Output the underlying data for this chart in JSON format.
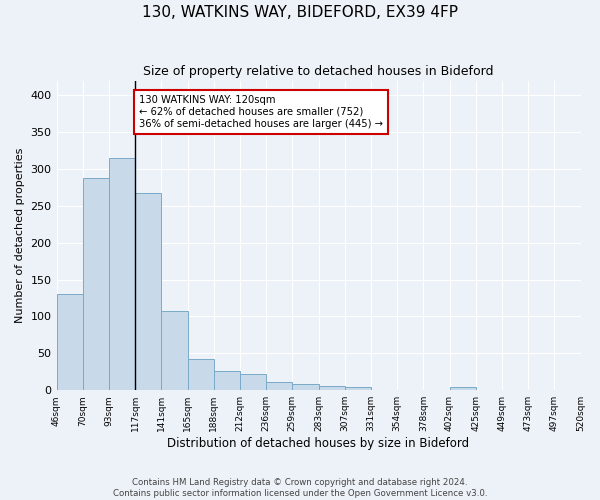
{
  "title1": "130, WATKINS WAY, BIDEFORD, EX39 4FP",
  "title2": "Size of property relative to detached houses in Bideford",
  "xlabel": "Distribution of detached houses by size in Bideford",
  "ylabel": "Number of detached properties",
  "footer": "Contains HM Land Registry data © Crown copyright and database right 2024.\nContains public sector information licensed under the Open Government Licence v3.0.",
  "bar_heights": [
    130,
    288,
    315,
    267,
    108,
    42,
    26,
    22,
    11,
    8,
    6,
    4,
    0,
    0,
    0,
    5,
    0,
    0,
    0,
    0
  ],
  "bin_labels": [
    "46sqm",
    "70sqm",
    "93sqm",
    "117sqm",
    "141sqm",
    "165sqm",
    "188sqm",
    "212sqm",
    "236sqm",
    "259sqm",
    "283sqm",
    "307sqm",
    "331sqm",
    "354sqm",
    "378sqm",
    "402sqm",
    "425sqm",
    "449sqm",
    "473sqm",
    "497sqm",
    "520sqm"
  ],
  "bar_color": "#c8d9ea",
  "bar_edge_color": "#7aaac8",
  "background_color": "#edf2f8",
  "grid_color": "#ffffff",
  "vline_bin": 3,
  "vline_color": "#000000",
  "annotation_text": "130 WATKINS WAY: 120sqm\n← 62% of detached houses are smaller (752)\n36% of semi-detached houses are larger (445) →",
  "annotation_box_color": "#ffffff",
  "annotation_border_color": "#cc0000",
  "ylim": [
    0,
    420
  ],
  "yticks": [
    0,
    50,
    100,
    150,
    200,
    250,
    300,
    350,
    400
  ],
  "title1_fontsize": 11,
  "title2_fontsize": 9,
  "ylabel_fontsize": 8,
  "xlabel_fontsize": 8.5
}
